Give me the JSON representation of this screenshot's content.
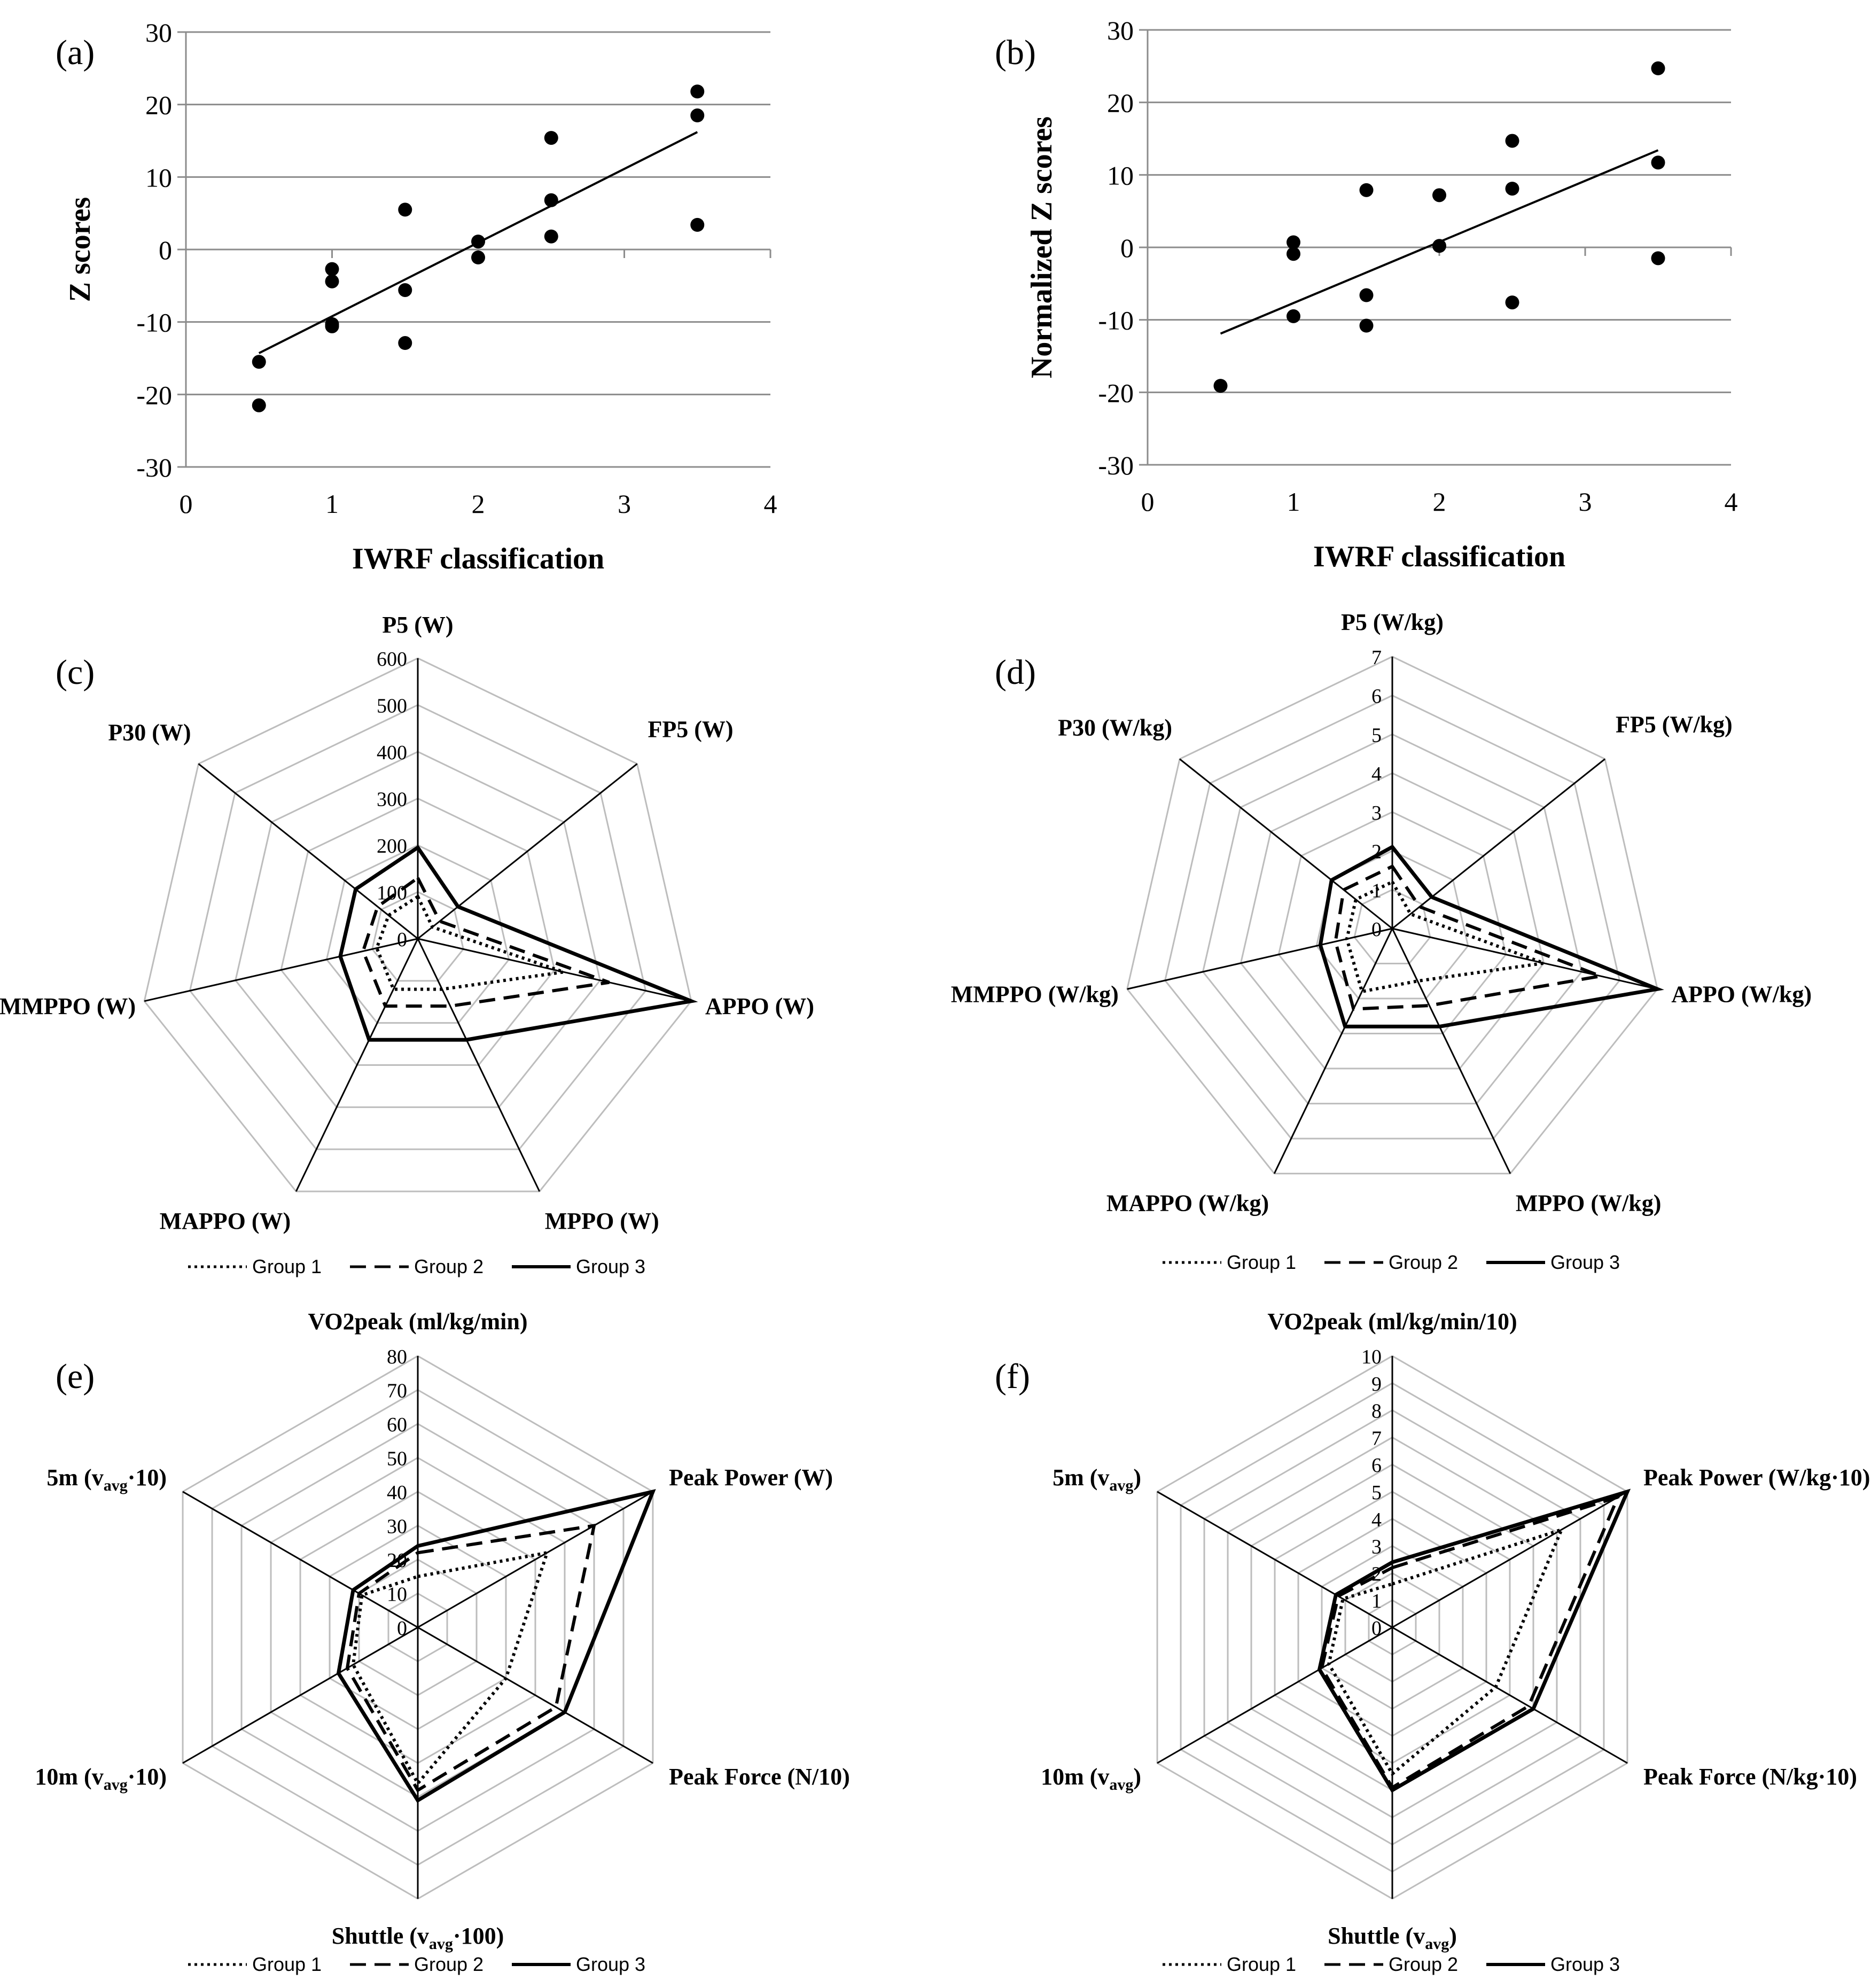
{
  "chart_data": [
    {
      "panel": "(a)",
      "type": "scatter",
      "xlabel": "IWRF classification",
      "ylabel": "Z scores",
      "xlim": [
        0,
        4
      ],
      "ylim": [
        -30,
        30
      ],
      "x_ticks": [
        "0",
        "1",
        "2",
        "3",
        "4"
      ],
      "y_ticks": [
        "-30",
        "-20",
        "-10",
        "0",
        "10",
        "20",
        "30"
      ],
      "grid": "horizontal",
      "points": [
        [
          0.5,
          -15.5
        ],
        [
          0.5,
          -21.5
        ],
        [
          1,
          -2.7
        ],
        [
          1,
          -4.4
        ],
        [
          1,
          -10.3
        ],
        [
          1,
          -10.6
        ],
        [
          1.5,
          5.5
        ],
        [
          1.5,
          -5.6
        ],
        [
          1.5,
          -12.9
        ],
        [
          2,
          1.1
        ],
        [
          2,
          -1.1
        ],
        [
          2.5,
          15.4
        ],
        [
          2.5,
          6.8
        ],
        [
          2.5,
          1.8
        ],
        [
          3.5,
          21.8
        ],
        [
          3.5,
          18.5
        ],
        [
          3.5,
          3.4
        ]
      ],
      "trendline": [
        [
          0.5,
          -14.3
        ],
        [
          3.5,
          16.2
        ]
      ]
    },
    {
      "panel": "(b)",
      "type": "scatter",
      "xlabel": "IWRF classification",
      "ylabel": "Normalized Z scores",
      "xlim": [
        0,
        4
      ],
      "ylim": [
        -30,
        30
      ],
      "x_ticks": [
        "0",
        "1",
        "2",
        "3",
        "4"
      ],
      "y_ticks": [
        "-30",
        "-20",
        "-10",
        "0",
        "10",
        "20",
        "30"
      ],
      "grid": "horizontal",
      "points": [
        [
          0.5,
          -19.1
        ],
        [
          1,
          0.7
        ],
        [
          1,
          -0.9
        ],
        [
          1,
          -9.5
        ],
        [
          1.5,
          7.9
        ],
        [
          1.5,
          -6.6
        ],
        [
          1.5,
          -10.8
        ],
        [
          2,
          7.2
        ],
        [
          2,
          0.2
        ],
        [
          2.5,
          14.7
        ],
        [
          2.5,
          8.1
        ],
        [
          2.5,
          -7.6
        ],
        [
          3.5,
          24.7
        ],
        [
          3.5,
          11.7
        ],
        [
          3.5,
          -1.5
        ]
      ],
      "trendline": [
        [
          0.5,
          -11.9
        ],
        [
          3.5,
          13.4
        ]
      ]
    },
    {
      "panel": "(c)",
      "type": "radar",
      "axes": [
        "P5 (W)",
        "FP5 (W)",
        "APPO (W)",
        "MPPO (W)",
        "MAPPO (W)",
        "MMPPO (W)",
        "P30 (W)"
      ],
      "r_max": 600,
      "r_ticks": [
        "0",
        "100",
        "200",
        "300",
        "400",
        "500",
        "600"
      ],
      "legend_position": "bottom",
      "series": [
        {
          "name": "Group 1",
          "style": "dotted",
          "values": [
            90,
            40,
            320,
            120,
            120,
            90,
            80
          ]
        },
        {
          "name": "Group 2",
          "style": "dashed",
          "values": [
            130,
            60,
            420,
            160,
            160,
            120,
            110
          ]
        },
        {
          "name": "Group 3",
          "style": "solid",
          "values": [
            195,
            110,
            600,
            240,
            240,
            170,
            170
          ]
        }
      ]
    },
    {
      "panel": "(d)",
      "type": "radar",
      "axes": [
        "P5 (W/kg)",
        "FP5 (W/kg)",
        "APPO (W/kg)",
        "MPPO (W/kg)",
        "MAPPO (W/kg)",
        "MMPPO (W/kg)",
        "P30 (W/kg)"
      ],
      "r_max": 7,
      "r_ticks": [
        "0",
        "1",
        "2",
        "3",
        "4",
        "5",
        "6",
        "7"
      ],
      "legend_position": "bottom",
      "series": [
        {
          "name": "Group 1",
          "style": "dotted",
          "values": [
            1.2,
            0.6,
            4.0,
            1.5,
            1.8,
            1.2,
            1.2
          ]
        },
        {
          "name": "Group 2",
          "style": "dashed",
          "values": [
            1.6,
            0.9,
            5.5,
            2.2,
            2.3,
            1.5,
            1.6
          ]
        },
        {
          "name": "Group 3",
          "style": "solid",
          "values": [
            2.1,
            1.3,
            7.0,
            2.8,
            2.8,
            1.9,
            2.0
          ]
        }
      ]
    },
    {
      "panel": "(e)",
      "type": "radar",
      "axes": [
        "VO2peak (ml/kg/min)",
        "Peak Power (W)",
        "Peak Force (N/10)",
        "Shuttle (vavg·100)",
        "10m (vavg·10)",
        "5m (vavg·10)"
      ],
      "axes_rich": [
        [
          {
            "t": "VO2peak (ml/kg/min)"
          }
        ],
        [
          {
            "t": "Peak Power (W)"
          }
        ],
        [
          {
            "t": "Peak Force (N/10)"
          }
        ],
        [
          {
            "t": "Shuttle (v"
          },
          {
            "t": "avg",
            "sub": true
          },
          {
            "t": "·100)"
          }
        ],
        [
          {
            "t": "10m (v"
          },
          {
            "t": "avg",
            "sub": true
          },
          {
            "t": "·10)"
          }
        ],
        [
          {
            "t": "5m (v"
          },
          {
            "t": "avg",
            "sub": true
          },
          {
            "t": "·10)"
          }
        ]
      ],
      "r_max": 80,
      "r_ticks": [
        "0",
        "10",
        "20",
        "30",
        "40",
        "50",
        "60",
        "70",
        "80"
      ],
      "legend_position": "bottom",
      "series": [
        {
          "name": "Group 1",
          "style": "dotted",
          "values": [
            15,
            44,
            30,
            46,
            22,
            19
          ]
        },
        {
          "name": "Group 2",
          "style": "dashed",
          "values": [
            22,
            60,
            47,
            48,
            24,
            20
          ]
        },
        {
          "name": "Group 3",
          "style": "solid",
          "values": [
            24,
            80,
            50,
            51,
            27,
            22
          ]
        }
      ]
    },
    {
      "panel": "(f)",
      "type": "radar",
      "axes": [
        "VO2peak (ml/kg/min/10)",
        "Peak Power (W/kg·10)",
        "Peak Force (N/kg·10)",
        "Shuttle (vavg)",
        "10m (vavg)",
        "5m (vavg)"
      ],
      "axes_rich": [
        [
          {
            "t": "VO2peak (ml/kg/min/10)"
          }
        ],
        [
          {
            "t": "Peak Power (W/kg·10)"
          }
        ],
        [
          {
            "t": "Peak Force (N/kg·10)"
          }
        ],
        [
          {
            "t": "Shuttle (v"
          },
          {
            "t": "avg",
            "sub": true
          },
          {
            "t": ")"
          }
        ],
        [
          {
            "t": "10m (v"
          },
          {
            "t": "avg",
            "sub": true
          },
          {
            "t": ")"
          }
        ],
        [
          {
            "t": "5m (v"
          },
          {
            "t": "avg",
            "sub": true
          },
          {
            "t": ")"
          }
        ]
      ],
      "r_max": 10,
      "r_ticks": [
        "0",
        "1",
        "2",
        "3",
        "4",
        "5",
        "6",
        "7",
        "8",
        "9",
        "10"
      ],
      "legend_position": "bottom",
      "series": [
        {
          "name": "Group 1",
          "style": "dotted",
          "values": [
            1.6,
            7.2,
            4.4,
            5.4,
            2.7,
            2.1
          ]
        },
        {
          "name": "Group 2",
          "style": "dashed",
          "values": [
            2.2,
            9.6,
            5.8,
            5.9,
            3.0,
            2.3
          ]
        },
        {
          "name": "Group 3",
          "style": "solid",
          "values": [
            2.4,
            10.0,
            6.0,
            6.0,
            3.1,
            2.4
          ]
        }
      ]
    }
  ]
}
